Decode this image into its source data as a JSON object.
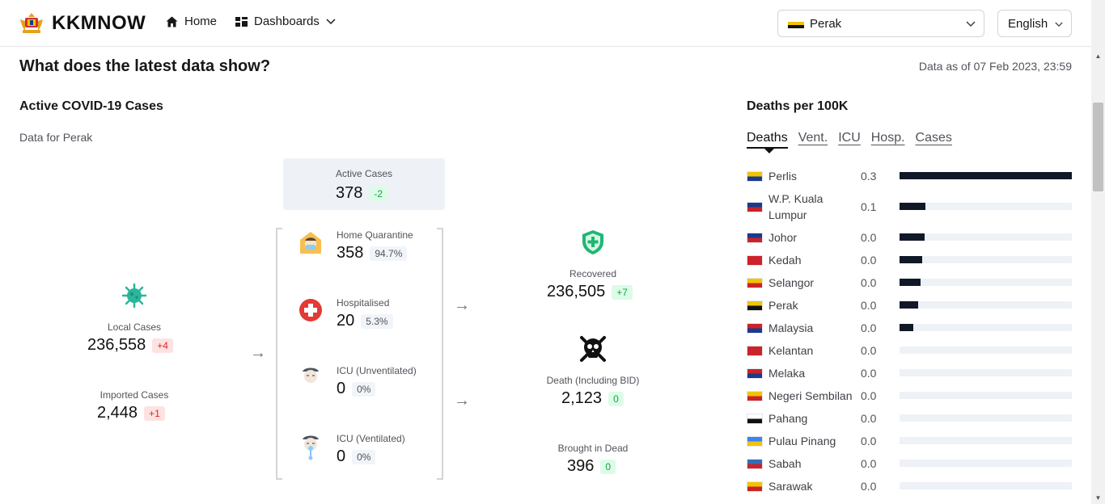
{
  "nav": {
    "brand": "KKMNOW",
    "home": "Home",
    "dashboards": "Dashboards",
    "state_select": "Perak",
    "language_select": "English"
  },
  "page": {
    "title": "What does the latest data show?",
    "data_as_of": "Data as of 07 Feb 2023, 23:59"
  },
  "active_cases": {
    "title": "Active COVID-19 Cases",
    "subtitle": "Data for Perak",
    "local": {
      "label": "Local Cases",
      "value": "236,558",
      "delta": "+4"
    },
    "imported": {
      "label": "Imported Cases",
      "value": "2,448",
      "delta": "+1"
    },
    "active": {
      "label": "Active Cases",
      "value": "378",
      "delta": "-2"
    },
    "home_quarantine": {
      "label": "Home Quarantine",
      "value": "358",
      "pct": "94.7%"
    },
    "hospitalised": {
      "label": "Hospitalised",
      "value": "20",
      "pct": "5.3%"
    },
    "icu_unventilated": {
      "label": "ICU (Unventilated)",
      "value": "0",
      "pct": "0%"
    },
    "icu_ventilated": {
      "label": "ICU (Ventilated)",
      "value": "0",
      "pct": "0%"
    },
    "recovered": {
      "label": "Recovered",
      "value": "236,505",
      "delta": "+7"
    },
    "death": {
      "label": "Death (Including BID)",
      "value": "2,123",
      "delta": "0"
    },
    "brought_in_dead": {
      "label": "Brought in Dead",
      "value": "396",
      "delta": "0"
    }
  },
  "deaths_panel": {
    "title": "Deaths per 100K",
    "tabs": [
      "Deaths",
      "Vent.",
      "ICU",
      "Hosp.",
      "Cases"
    ],
    "active_tab": "Deaths",
    "max_value": 0.3,
    "rows": [
      {
        "state": "Perlis",
        "value": "0.3",
        "bar_fraction": 1.0,
        "flag": [
          "#f2c400",
          "#1a3a8f"
        ]
      },
      {
        "state": "W.P. Kuala Lumpur",
        "value": "0.1",
        "bar_fraction": 0.15,
        "flag": [
          "#1a3a8f",
          "#cc2229"
        ]
      },
      {
        "state": "Johor",
        "value": "0.0",
        "bar_fraction": 0.145,
        "flag": [
          "#1a3a8f",
          "#cc2229"
        ]
      },
      {
        "state": "Kedah",
        "value": "0.0",
        "bar_fraction": 0.13,
        "flag": [
          "#cc2229",
          "#cc2229"
        ]
      },
      {
        "state": "Selangor",
        "value": "0.0",
        "bar_fraction": 0.12,
        "flag": [
          "#f2c400",
          "#cc2229"
        ]
      },
      {
        "state": "Perak",
        "value": "0.0",
        "bar_fraction": 0.11,
        "flag": [
          "#f2c400",
          "#111111"
        ]
      },
      {
        "state": "Malaysia",
        "value": "0.0",
        "bar_fraction": 0.08,
        "flag": [
          "#cc2229",
          "#1a3a8f"
        ]
      },
      {
        "state": "Kelantan",
        "value": "0.0",
        "bar_fraction": 0,
        "flag": [
          "#cc2229",
          "#cc2229"
        ]
      },
      {
        "state": "Melaka",
        "value": "0.0",
        "bar_fraction": 0,
        "flag": [
          "#cc2229",
          "#1a3a8f"
        ]
      },
      {
        "state": "Negeri Sembilan",
        "value": "0.0",
        "bar_fraction": 0,
        "flag": [
          "#f2c400",
          "#cc2229"
        ]
      },
      {
        "state": "Pahang",
        "value": "0.0",
        "bar_fraction": 0,
        "flag": [
          "#ffffff",
          "#111111"
        ]
      },
      {
        "state": "Pulau Pinang",
        "value": "0.0",
        "bar_fraction": 0,
        "flag": [
          "#3b82f6",
          "#f2c400"
        ]
      },
      {
        "state": "Sabah",
        "value": "0.0",
        "bar_fraction": 0,
        "flag": [
          "#2f6fb8",
          "#cc2229"
        ]
      },
      {
        "state": "Sarawak",
        "value": "0.0",
        "bar_fraction": 0,
        "flag": [
          "#f2c400",
          "#cc2229"
        ]
      }
    ]
  }
}
